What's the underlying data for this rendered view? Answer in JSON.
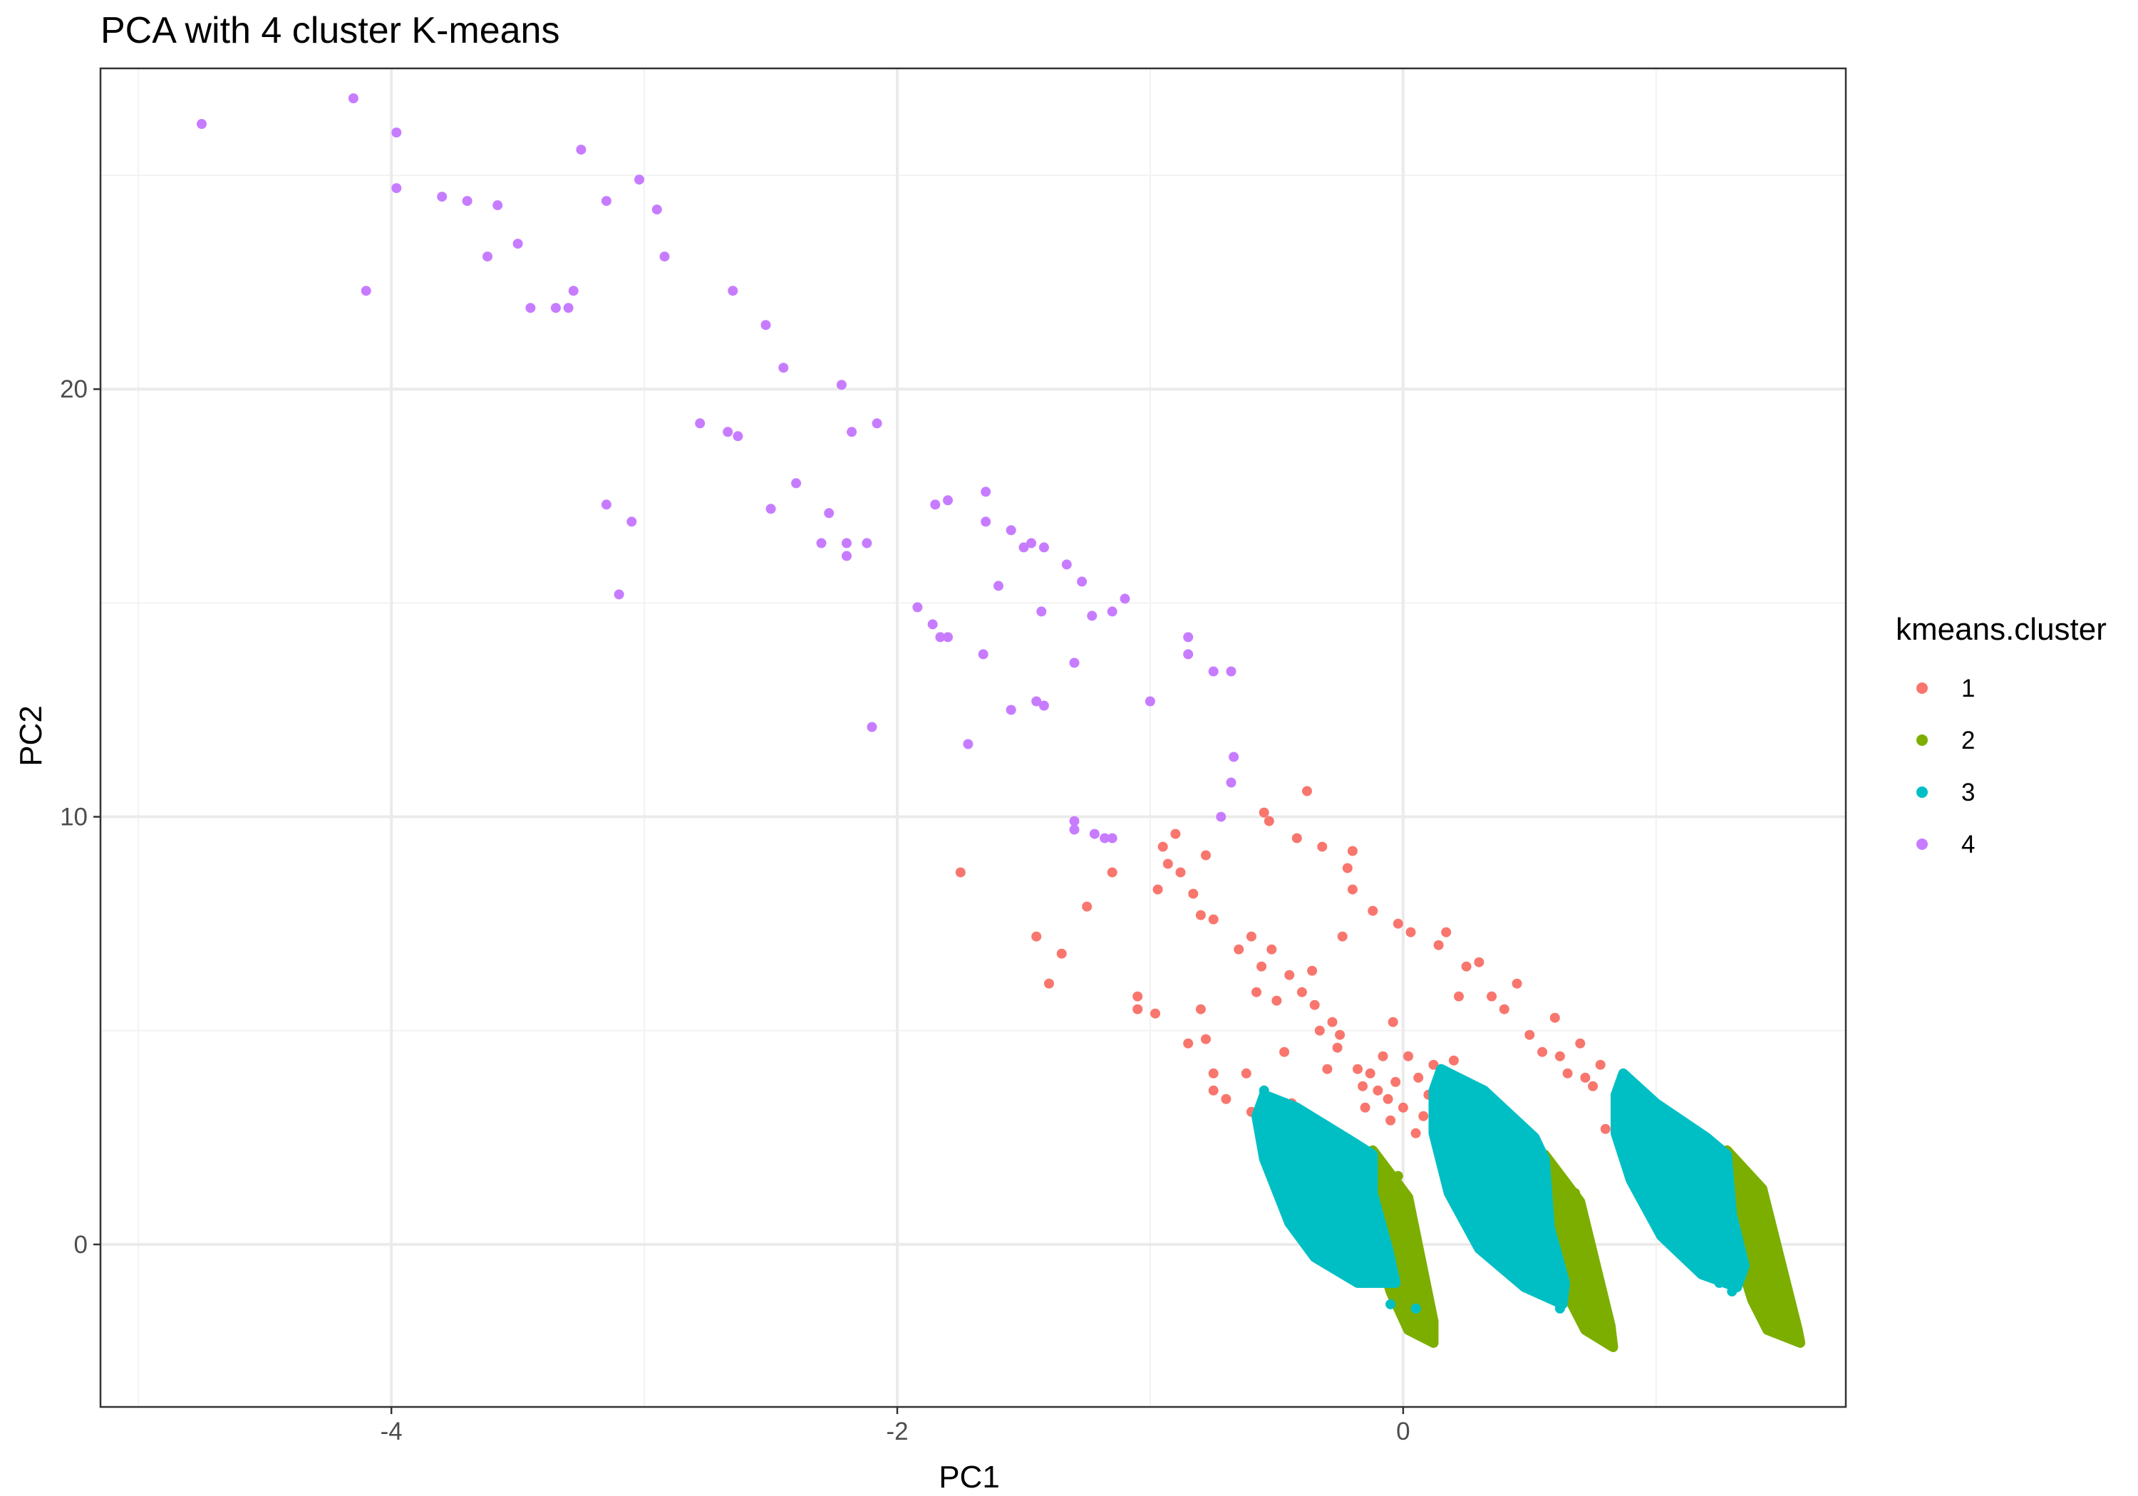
{
  "chart_data": {
    "type": "scatter",
    "title": "PCA with 4 cluster K-means",
    "xlabel": "PC1",
    "ylabel": "PC2",
    "xlim": [
      -5.15,
      1.75
    ],
    "ylim": [
      -3.8,
      27.5
    ],
    "x_ticks": [
      -4,
      -2,
      0
    ],
    "y_ticks": [
      0,
      10,
      20
    ],
    "x_tick_labels": [
      "-4",
      "-2",
      "0"
    ],
    "y_tick_labels": [
      "0",
      "10",
      "20"
    ],
    "grid": true,
    "legend": {
      "title": "kmeans.cluster",
      "position": "right"
    },
    "series": [
      {
        "name": "1",
        "color": "#F8766D",
        "points": [
          [
            -1.75,
            8.7
          ],
          [
            -1.45,
            7.2
          ],
          [
            -1.4,
            6.1
          ],
          [
            -1.35,
            6.8
          ],
          [
            -1.25,
            7.9
          ],
          [
            -1.15,
            8.7
          ],
          [
            -1.05,
            5.8
          ],
          [
            -1.05,
            5.5
          ],
          [
            -0.98,
            5.4
          ],
          [
            -0.97,
            8.3
          ],
          [
            -0.95,
            9.3
          ],
          [
            -0.93,
            8.9
          ],
          [
            -0.9,
            9.6
          ],
          [
            -0.88,
            8.7
          ],
          [
            -0.85,
            4.7
          ],
          [
            -0.83,
            8.2
          ],
          [
            -0.8,
            5.5
          ],
          [
            -0.8,
            7.7
          ],
          [
            -0.78,
            4.8
          ],
          [
            -0.78,
            9.1
          ],
          [
            -0.75,
            4.0
          ],
          [
            -0.75,
            3.6
          ],
          [
            -0.75,
            7.6
          ],
          [
            -0.7,
            3.4
          ],
          [
            -0.65,
            6.9
          ],
          [
            -0.62,
            4.0
          ],
          [
            -0.6,
            7.2
          ],
          [
            -0.6,
            3.1
          ],
          [
            -0.58,
            5.9
          ],
          [
            -0.56,
            6.5
          ],
          [
            -0.55,
            10.1
          ],
          [
            -0.53,
            9.9
          ],
          [
            -0.52,
            6.9
          ],
          [
            -0.5,
            5.7
          ],
          [
            -0.48,
            3.0
          ],
          [
            -0.47,
            4.5
          ],
          [
            -0.45,
            6.3
          ],
          [
            -0.44,
            3.3
          ],
          [
            -0.42,
            9.5
          ],
          [
            -0.4,
            5.9
          ],
          [
            -0.38,
            10.6
          ],
          [
            -0.36,
            6.4
          ],
          [
            -0.35,
            5.6
          ],
          [
            -0.33,
            5.0
          ],
          [
            -0.32,
            9.3
          ],
          [
            -0.3,
            4.1
          ],
          [
            -0.28,
            5.2
          ],
          [
            -0.26,
            4.6
          ],
          [
            -0.25,
            4.9
          ],
          [
            -0.24,
            7.2
          ],
          [
            -0.22,
            8.8
          ],
          [
            -0.2,
            9.2
          ],
          [
            -0.2,
            8.3
          ],
          [
            -0.18,
            4.1
          ],
          [
            -0.16,
            3.7
          ],
          [
            -0.15,
            3.2
          ],
          [
            -0.13,
            4.0
          ],
          [
            -0.12,
            7.8
          ],
          [
            -0.1,
            3.6
          ],
          [
            -0.08,
            4.4
          ],
          [
            -0.06,
            3.4
          ],
          [
            -0.05,
            2.9
          ],
          [
            -0.04,
            5.2
          ],
          [
            -0.03,
            3.8
          ],
          [
            -0.02,
            7.5
          ],
          [
            0.0,
            3.2
          ],
          [
            0.02,
            4.4
          ],
          [
            0.03,
            7.3
          ],
          [
            0.05,
            2.6
          ],
          [
            0.06,
            3.9
          ],
          [
            0.08,
            3.0
          ],
          [
            0.1,
            3.5
          ],
          [
            0.12,
            4.2
          ],
          [
            0.14,
            7.0
          ],
          [
            0.17,
            7.3
          ],
          [
            0.2,
            4.3
          ],
          [
            0.22,
            5.8
          ],
          [
            0.25,
            6.5
          ],
          [
            0.3,
            6.6
          ],
          [
            0.35,
            5.8
          ],
          [
            0.4,
            5.5
          ],
          [
            0.45,
            6.1
          ],
          [
            0.5,
            4.9
          ],
          [
            0.55,
            4.5
          ],
          [
            0.6,
            5.3
          ],
          [
            0.62,
            4.4
          ],
          [
            0.65,
            4.0
          ],
          [
            0.7,
            4.7
          ],
          [
            0.72,
            3.9
          ],
          [
            0.75,
            3.7
          ],
          [
            0.78,
            4.2
          ],
          [
            0.8,
            2.7
          ],
          [
            0.85,
            3.3
          ],
          [
            0.88,
            2.3
          ],
          [
            0.92,
            1.8
          ]
        ]
      },
      {
        "name": "2",
        "color": "#7CAE00",
        "polygons": [
          [
            [
              -0.12,
              2.2
            ],
            [
              0.02,
              1.1
            ],
            [
              0.12,
              -1.8
            ],
            [
              0.12,
              -2.3
            ],
            [
              0.02,
              -2.0
            ],
            [
              -0.05,
              -1.1
            ],
            [
              -0.12,
              0.3
            ],
            [
              -0.16,
              1.4
            ]
          ],
          [
            [
              0.56,
              2.1
            ],
            [
              0.7,
              1.0
            ],
            [
              0.82,
              -1.9
            ],
            [
              0.83,
              -2.4
            ],
            [
              0.72,
              -2.0
            ],
            [
              0.65,
              -1.2
            ],
            [
              0.58,
              0.2
            ],
            [
              0.54,
              1.3
            ]
          ],
          [
            [
              1.28,
              2.2
            ],
            [
              1.42,
              1.3
            ],
            [
              1.56,
              -2.0
            ],
            [
              1.57,
              -2.3
            ],
            [
              1.44,
              -2.0
            ],
            [
              1.38,
              -1.3
            ],
            [
              1.3,
              0.2
            ],
            [
              1.26,
              1.4
            ]
          ]
        ],
        "points": [
          [
            -0.02,
            1.6
          ],
          [
            0.0,
            0.5
          ],
          [
            0.04,
            -0.8
          ],
          [
            0.06,
            -1.3
          ],
          [
            0.08,
            -1.6
          ],
          [
            0.1,
            -2.1
          ],
          [
            0.68,
            1.2
          ],
          [
            0.7,
            0.0
          ],
          [
            0.72,
            -0.9
          ],
          [
            0.76,
            -1.5
          ],
          [
            0.8,
            -2.2
          ],
          [
            1.36,
            1.5
          ],
          [
            1.4,
            0.2
          ],
          [
            1.45,
            -0.9
          ],
          [
            1.5,
            -1.6
          ],
          [
            1.55,
            -2.2
          ]
        ]
      },
      {
        "name": "3",
        "color": "#00BFC4",
        "polygons": [
          [
            [
              -0.55,
              3.5
            ],
            [
              -0.42,
              3.2
            ],
            [
              -0.2,
              2.4
            ],
            [
              -0.12,
              2.1
            ],
            [
              -0.12,
              1.2
            ],
            [
              -0.06,
              -0.1
            ],
            [
              -0.03,
              -0.9
            ],
            [
              -0.18,
              -0.9
            ],
            [
              -0.35,
              -0.3
            ],
            [
              -0.45,
              0.5
            ],
            [
              -0.55,
              2.0
            ],
            [
              -0.58,
              3.0
            ]
          ],
          [
            [
              0.15,
              4.1
            ],
            [
              0.32,
              3.6
            ],
            [
              0.52,
              2.5
            ],
            [
              0.56,
              2.0
            ],
            [
              0.58,
              0.4
            ],
            [
              0.64,
              -0.9
            ],
            [
              0.63,
              -1.4
            ],
            [
              0.48,
              -1.0
            ],
            [
              0.3,
              -0.1
            ],
            [
              0.18,
              1.2
            ],
            [
              0.12,
              2.6
            ],
            [
              0.12,
              3.6
            ]
          ],
          [
            [
              0.87,
              4.0
            ],
            [
              1.0,
              3.3
            ],
            [
              1.2,
              2.5
            ],
            [
              1.28,
              2.1
            ],
            [
              1.3,
              0.7
            ],
            [
              1.35,
              -0.5
            ],
            [
              1.32,
              -1.0
            ],
            [
              1.18,
              -0.7
            ],
            [
              1.02,
              0.2
            ],
            [
              0.9,
              1.5
            ],
            [
              0.84,
              2.6
            ],
            [
              0.84,
              3.5
            ]
          ]
        ],
        "points": [
          [
            -0.55,
            3.6
          ],
          [
            -0.5,
            3.0
          ],
          [
            -0.48,
            2.2
          ],
          [
            -0.4,
            1.7
          ],
          [
            -0.38,
            0.8
          ],
          [
            -0.35,
            1.3
          ],
          [
            -0.3,
            0.6
          ],
          [
            -0.28,
            -0.2
          ],
          [
            -0.25,
            -0.3
          ],
          [
            -0.22,
            -0.6
          ],
          [
            -0.15,
            -0.9
          ],
          [
            -0.05,
            -1.4
          ],
          [
            0.05,
            -1.5
          ],
          [
            0.14,
            3.3
          ],
          [
            0.2,
            2.0
          ],
          [
            0.25,
            1.4
          ],
          [
            0.3,
            0.9
          ],
          [
            0.35,
            0.3
          ],
          [
            0.4,
            0.0
          ],
          [
            0.45,
            -0.4
          ],
          [
            0.5,
            -0.6
          ],
          [
            0.55,
            -1.1
          ],
          [
            0.62,
            -1.5
          ],
          [
            0.88,
            3.8
          ],
          [
            0.92,
            2.3
          ],
          [
            0.98,
            1.6
          ],
          [
            1.02,
            0.8
          ],
          [
            1.06,
            0.4
          ],
          [
            1.1,
            0.0
          ],
          [
            1.15,
            -0.2
          ],
          [
            1.2,
            -0.6
          ],
          [
            1.25,
            -0.9
          ],
          [
            1.3,
            -1.1
          ]
        ]
      },
      {
        "name": "4",
        "color": "#C77CFF",
        "points": [
          [
            -4.75,
            26.2
          ],
          [
            -4.15,
            26.8
          ],
          [
            -4.1,
            22.3
          ],
          [
            -3.98,
            26.0
          ],
          [
            -3.98,
            24.7
          ],
          [
            -3.8,
            24.5
          ],
          [
            -3.7,
            24.4
          ],
          [
            -3.62,
            23.1
          ],
          [
            -3.58,
            24.3
          ],
          [
            -3.5,
            23.4
          ],
          [
            -3.45,
            21.9
          ],
          [
            -3.35,
            21.9
          ],
          [
            -3.3,
            21.9
          ],
          [
            -3.28,
            22.3
          ],
          [
            -3.25,
            25.6
          ],
          [
            -3.15,
            24.4
          ],
          [
            -3.15,
            17.3
          ],
          [
            -3.1,
            15.2
          ],
          [
            -3.05,
            16.9
          ],
          [
            -3.02,
            24.9
          ],
          [
            -2.95,
            24.2
          ],
          [
            -2.92,
            23.1
          ],
          [
            -2.78,
            19.2
          ],
          [
            -2.67,
            19.0
          ],
          [
            -2.65,
            22.3
          ],
          [
            -2.63,
            18.9
          ],
          [
            -2.52,
            21.5
          ],
          [
            -2.5,
            17.2
          ],
          [
            -2.45,
            20.5
          ],
          [
            -2.4,
            17.8
          ],
          [
            -2.3,
            16.4
          ],
          [
            -2.27,
            17.1
          ],
          [
            -2.22,
            20.1
          ],
          [
            -2.2,
            16.4
          ],
          [
            -2.2,
            16.1
          ],
          [
            -2.18,
            19.0
          ],
          [
            -2.12,
            16.4
          ],
          [
            -2.1,
            12.1
          ],
          [
            -2.08,
            19.2
          ],
          [
            -1.92,
            14.9
          ],
          [
            -1.86,
            14.5
          ],
          [
            -1.85,
            17.3
          ],
          [
            -1.83,
            14.2
          ],
          [
            -1.8,
            14.2
          ],
          [
            -1.8,
            17.4
          ],
          [
            -1.72,
            11.7
          ],
          [
            -1.66,
            13.8
          ],
          [
            -1.65,
            17.6
          ],
          [
            -1.65,
            16.9
          ],
          [
            -1.6,
            15.4
          ],
          [
            -1.55,
            16.7
          ],
          [
            -1.55,
            12.5
          ],
          [
            -1.5,
            16.3
          ],
          [
            -1.47,
            16.4
          ],
          [
            -1.45,
            12.7
          ],
          [
            -1.42,
            16.3
          ],
          [
            -1.43,
            14.8
          ],
          [
            -1.42,
            12.6
          ],
          [
            -1.33,
            15.9
          ],
          [
            -1.3,
            13.6
          ],
          [
            -1.3,
            9.9
          ],
          [
            -1.3,
            9.7
          ],
          [
            -1.27,
            15.5
          ],
          [
            -1.23,
            14.7
          ],
          [
            -1.22,
            9.6
          ],
          [
            -1.18,
            9.5
          ],
          [
            -1.15,
            9.5
          ],
          [
            -1.15,
            14.8
          ],
          [
            -1.1,
            15.1
          ],
          [
            -1.0,
            12.7
          ],
          [
            -0.85,
            14.2
          ],
          [
            -0.85,
            13.8
          ],
          [
            -0.75,
            13.4
          ],
          [
            -0.68,
            13.4
          ],
          [
            -0.67,
            11.4
          ],
          [
            -0.68,
            10.8
          ],
          [
            -0.72,
            10.0
          ]
        ]
      }
    ]
  }
}
